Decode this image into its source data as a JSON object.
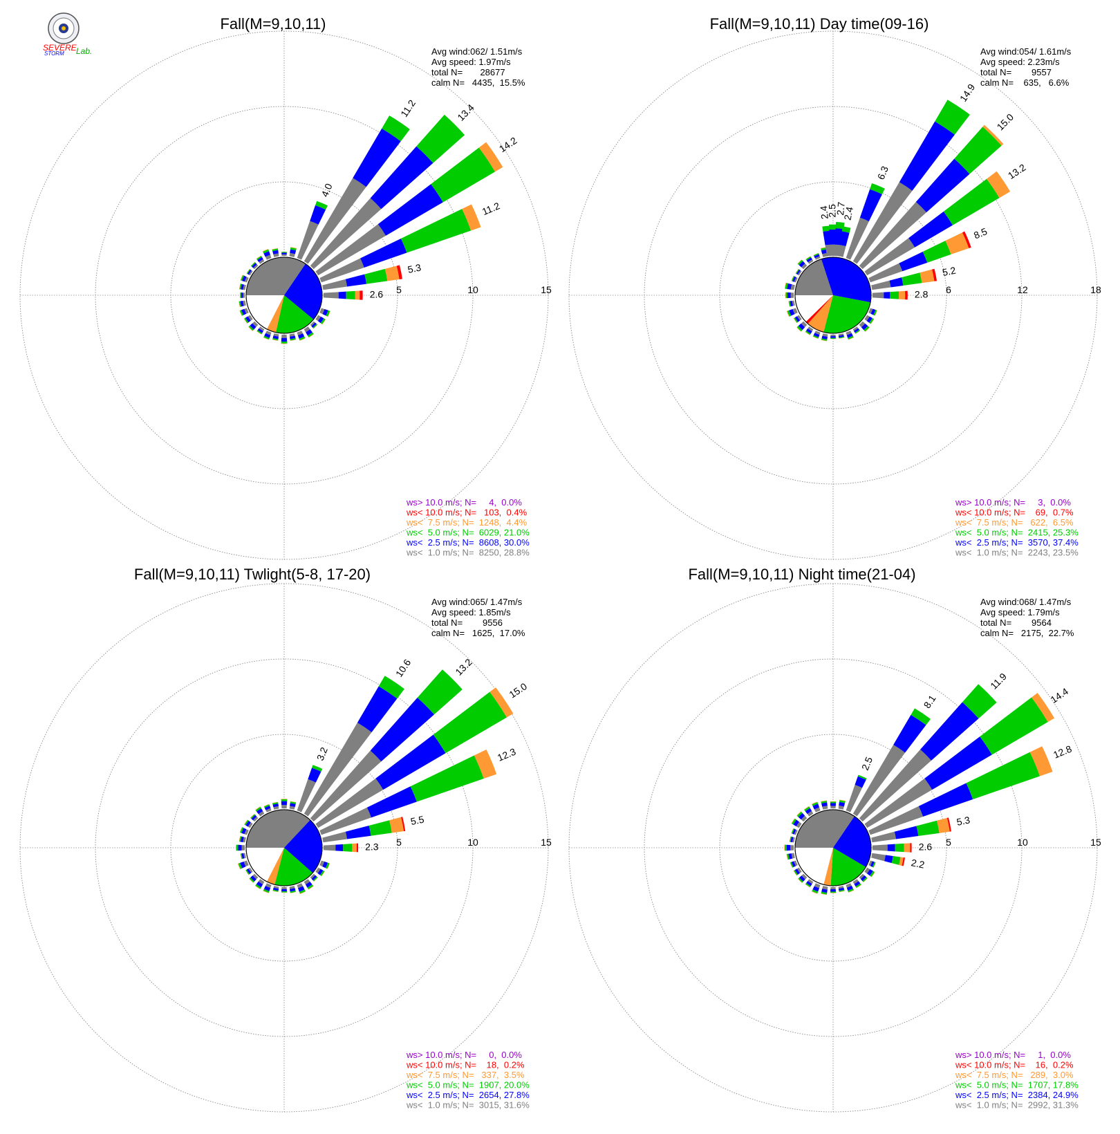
{
  "logo": {
    "text_severe": "SEVERE",
    "text_storm": "STORM",
    "text_lab": "Lab."
  },
  "colors": {
    "c1": "#808080",
    "c2": "#0000ff",
    "c3": "#00cc00",
    "c4": "#ff9933",
    "c5": "#ff0000",
    "c6": "#9900cc",
    "grid": "#888888"
  },
  "chart_data": [
    {
      "type": "windrose",
      "title": "Fall(M=9,10,11)",
      "stats": [
        "Avg wind:062/ 1.51m/s",
        "Avg speed: 1.97m/s",
        "total N=       28677",
        "calm N=   4435,  15.5%"
      ],
      "rmax": 15,
      "ring_labels": [
        "5",
        "10",
        "15"
      ],
      "calm_pie": [
        {
          "name": "ws<1.0",
          "frac": 0.345,
          "color": "#808080"
        },
        {
          "name": "ws<2.5",
          "frac": 0.265,
          "color": "#0000ff"
        },
        {
          "name": "ws<5.0",
          "frac": 0.175,
          "color": "#00cc00"
        },
        {
          "name": "ws<7.5",
          "frac": 0.04,
          "color": "#ff9933"
        }
      ],
      "bars": [
        {
          "dir": 22.5,
          "total": 4.0,
          "comp": [
            2.6,
            1.1,
            0.3,
            0,
            0
          ]
        },
        {
          "dir": 33.75,
          "total": 11.2,
          "comp": [
            6.4,
            3.8,
            1.0,
            0,
            0
          ]
        },
        {
          "dir": 45,
          "total": 13.4,
          "comp": [
            6.0,
            4.6,
            2.8,
            0,
            0
          ]
        },
        {
          "dir": 56.25,
          "total": 14.2,
          "comp": [
            5.2,
            4.4,
            4.0,
            0.6,
            0
          ]
        },
        {
          "dir": 67.5,
          "total": 11.2,
          "comp": [
            3.0,
            3.0,
            4.5,
            0.7,
            0
          ]
        },
        {
          "dir": 78.75,
          "total": 5.3,
          "comp": [
            1.6,
            1.3,
            1.4,
            0.8,
            0.2
          ]
        },
        {
          "dir": 90,
          "total": 2.6,
          "comp": [
            1.0,
            0.5,
            0.6,
            0.3,
            0.2
          ]
        }
      ],
      "bar_labels": [
        "4.0",
        "11.2",
        "13.4",
        "14.2",
        "11.2",
        "5.3",
        "2.6"
      ],
      "legend": [
        {
          "text": "ws> 10.0 m/s; N=     4,  0.0%",
          "color": "#9900cc"
        },
        {
          "text": "ws< 10.0 m/s; N=   103,  0.4%",
          "color": "#ff0000"
        },
        {
          "text": "ws<  7.5 m/s; N=  1248,  4.4%",
          "color": "#ff9933"
        },
        {
          "text": "ws<  5.0 m/s; N=  6029, 21.0%",
          "color": "#00cc00"
        },
        {
          "text": "ws<  2.5 m/s; N=  8608, 30.0%",
          "color": "#0000ff"
        },
        {
          "text": "ws<  1.0 m/s; N=  8250, 28.8%",
          "color": "#808080"
        }
      ]
    },
    {
      "type": "windrose",
      "title": "Fall(M=9,10,11) Day time(09-16)",
      "stats": [
        "Avg wind:054/ 1.61m/s",
        "Avg speed: 2.23m/s",
        "total N=        9557",
        "calm N=    635,   6.6%"
      ],
      "rmax": 18,
      "ring_labels": [
        "6",
        "12",
        "18"
      ],
      "calm_pie": [
        {
          "name": "ws<1.0",
          "frac": 0.2,
          "color": "#808080"
        },
        {
          "name": "ws<2.5",
          "frac": 0.33,
          "color": "#0000ff"
        },
        {
          "name": "ws<5.0",
          "frac": 0.26,
          "color": "#00cc00"
        },
        {
          "name": "ws<7.5",
          "frac": 0.075,
          "color": "#ff9933"
        },
        {
          "name": "ws<10.0",
          "frac": 0.012,
          "color": "#ff0000"
        }
      ],
      "bars": [
        {
          "dir": -5.6,
          "total": 2.4,
          "comp": [
            0.9,
            1.1,
            0.4,
            0,
            0
          ]
        },
        {
          "dir": 0,
          "total": 2.5,
          "comp": [
            0.9,
            1.2,
            0.4,
            0,
            0
          ]
        },
        {
          "dir": 5.6,
          "total": 2.7,
          "comp": [
            0.9,
            1.3,
            0.5,
            0,
            0
          ]
        },
        {
          "dir": 11.25,
          "total": 2.4,
          "comp": [
            0.9,
            1.1,
            0.4,
            0,
            0
          ]
        },
        {
          "dir": 22.5,
          "total": 6.3,
          "comp": [
            3.4,
            2.4,
            0.5,
            0,
            0
          ]
        },
        {
          "dir": 33.75,
          "total": 14.9,
          "comp": [
            7.3,
            5.6,
            2.0,
            0,
            0
          ]
        },
        {
          "dir": 45,
          "total": 15.0,
          "comp": [
            6.8,
            4.6,
            3.4,
            0.2,
            0
          ]
        },
        {
          "dir": 56.25,
          "total": 13.2,
          "comp": [
            4.4,
            3.5,
            4.3,
            1.0,
            0
          ]
        },
        {
          "dir": 67.5,
          "total": 8.5,
          "comp": [
            2.7,
            2.1,
            2.0,
            1.5,
            0.2
          ]
        },
        {
          "dir": 78.75,
          "total": 5.2,
          "comp": [
            1.5,
            1.0,
            1.5,
            1.0,
            0.2
          ]
        },
        {
          "dir": 90,
          "total": 2.8,
          "comp": [
            0.9,
            0.5,
            0.7,
            0.5,
            0.2
          ]
        }
      ],
      "bar_labels": [
        "2.4",
        "2.5",
        "2.7",
        "2.4",
        "6.3",
        "14.9",
        "15.0",
        "13.2",
        "8.5",
        "5.2",
        "2.8"
      ],
      "legend": [
        {
          "text": "ws> 10.0 m/s; N=     3,  0.0%",
          "color": "#9900cc"
        },
        {
          "text": "ws< 10.0 m/s; N=    69,  0.7%",
          "color": "#ff0000"
        },
        {
          "text": "ws<  7.5 m/s; N=   622,  6.5%",
          "color": "#ff9933"
        },
        {
          "text": "ws<  5.0 m/s; N=  2415, 25.3%",
          "color": "#00cc00"
        },
        {
          "text": "ws<  2.5 m/s; N=  3570, 37.4%",
          "color": "#0000ff"
        },
        {
          "text": "ws<  1.0 m/s; N=  2243, 23.5%",
          "color": "#808080"
        }
      ]
    },
    {
      "type": "windrose",
      "title": "Fall(M=9,10,11) Twlight(5-8, 17-20)",
      "stats": [
        "Avg wind:065/ 1.47m/s",
        "Avg speed: 1.85m/s",
        "total N=        9556",
        "calm N=   1625,  17.0%"
      ],
      "rmax": 15,
      "ring_labels": [
        "5",
        "10",
        "15"
      ],
      "calm_pie": [
        {
          "name": "ws<1.0",
          "frac": 0.37,
          "color": "#808080"
        },
        {
          "name": "ws<2.5",
          "frac": 0.245,
          "color": "#0000ff"
        },
        {
          "name": "ws<5.0",
          "frac": 0.175,
          "color": "#00cc00"
        },
        {
          "name": "ws<7.5",
          "frac": 0.035,
          "color": "#ff9933"
        }
      ],
      "bars": [
        {
          "dir": 22.5,
          "total": 3.2,
          "comp": [
            2.2,
            0.8,
            0.2,
            0,
            0
          ]
        },
        {
          "dir": 33.75,
          "total": 10.6,
          "comp": [
            7.0,
            2.8,
            0.8,
            0,
            0
          ]
        },
        {
          "dir": 45,
          "total": 13.2,
          "comp": [
            6.0,
            4.7,
            2.5,
            0,
            0
          ]
        },
        {
          "dir": 56.25,
          "total": 15.0,
          "comp": [
            5.0,
            4.8,
            4.7,
            0.5,
            0
          ]
        },
        {
          "dir": 67.5,
          "total": 12.3,
          "comp": [
            3.5,
            3.2,
            4.7,
            0.9,
            0
          ]
        },
        {
          "dir": 78.75,
          "total": 5.5,
          "comp": [
            1.6,
            1.6,
            1.4,
            0.8,
            0.1
          ]
        },
        {
          "dir": 90,
          "total": 2.3,
          "comp": [
            0.8,
            0.5,
            0.6,
            0.3,
            0.1
          ]
        }
      ],
      "bar_labels": [
        "3.2",
        "10.6",
        "13.2",
        "15.0",
        "12.3",
        "5.5",
        "2.3"
      ],
      "legend": [
        {
          "text": "ws> 10.0 m/s; N=     0,  0.0%",
          "color": "#9900cc"
        },
        {
          "text": "ws< 10.0 m/s; N=    18,  0.2%",
          "color": "#ff0000"
        },
        {
          "text": "ws<  7.5 m/s; N=   337,  3.5%",
          "color": "#ff9933"
        },
        {
          "text": "ws<  5.0 m/s; N=  1907, 20.0%",
          "color": "#00cc00"
        },
        {
          "text": "ws<  2.5 m/s; N=  2654, 27.8%",
          "color": "#0000ff"
        },
        {
          "text": "ws<  1.0 m/s; N=  3015, 31.6%",
          "color": "#808080"
        }
      ]
    },
    {
      "type": "windrose",
      "title": "Fall(M=9,10,11) Night time(21-04)",
      "stats": [
        "Avg wind:068/ 1.47m/s",
        "Avg speed: 1.79m/s",
        "total N=        9564",
        "calm N=   2175,  22.7%"
      ],
      "rmax": 15,
      "ring_labels": [
        "5",
        "10",
        "15"
      ],
      "calm_pie": [
        {
          "name": "ws<1.0",
          "frac": 0.345,
          "color": "#808080"
        },
        {
          "name": "ws<2.5",
          "frac": 0.24,
          "color": "#0000ff"
        },
        {
          "name": "ws<5.0",
          "frac": 0.175,
          "color": "#00cc00"
        },
        {
          "name": "ws<7.5",
          "frac": 0.03,
          "color": "#ff9933"
        }
      ],
      "bars": [
        {
          "dir": 22.5,
          "total": 2.5,
          "comp": [
            1.8,
            0.6,
            0.1,
            0,
            0
          ]
        },
        {
          "dir": 33.75,
          "total": 8.1,
          "comp": [
            5.3,
            2.3,
            0.5,
            0,
            0
          ]
        },
        {
          "dir": 45,
          "total": 11.9,
          "comp": [
            6.1,
            4.2,
            1.6,
            0,
            0
          ]
        },
        {
          "dir": 56.25,
          "total": 14.4,
          "comp": [
            5.0,
            4.6,
            4.3,
            0.5,
            0
          ]
        },
        {
          "dir": 67.5,
          "total": 12.8,
          "comp": [
            3.7,
            3.5,
            4.7,
            0.9,
            0
          ]
        },
        {
          "dir": 78.75,
          "total": 5.3,
          "comp": [
            1.6,
            1.5,
            1.4,
            0.7,
            0.1
          ]
        },
        {
          "dir": 90,
          "total": 2.6,
          "comp": [
            1.0,
            0.5,
            0.6,
            0.4,
            0.1
          ]
        },
        {
          "dir": 101.25,
          "total": 2.2,
          "comp": [
            0.9,
            0.5,
            0.5,
            0.2,
            0.1
          ]
        }
      ],
      "bar_labels": [
        "2.5",
        "8.1",
        "11.9",
        "14.4",
        "12.8",
        "5.3",
        "2.6",
        "2.2"
      ],
      "legend": [
        {
          "text": "ws> 10.0 m/s; N=     1,  0.0%",
          "color": "#9900cc"
        },
        {
          "text": "ws< 10.0 m/s; N=    16,  0.2%",
          "color": "#ff0000"
        },
        {
          "text": "ws<  7.5 m/s; N=   289,  3.0%",
          "color": "#ff9933"
        },
        {
          "text": "ws<  5.0 m/s; N=  1707, 17.8%",
          "color": "#00cc00"
        },
        {
          "text": "ws<  2.5 m/s; N=  2384, 24.9%",
          "color": "#0000ff"
        },
        {
          "text": "ws<  1.0 m/s; N=  2992, 31.3%",
          "color": "#808080"
        }
      ]
    }
  ]
}
